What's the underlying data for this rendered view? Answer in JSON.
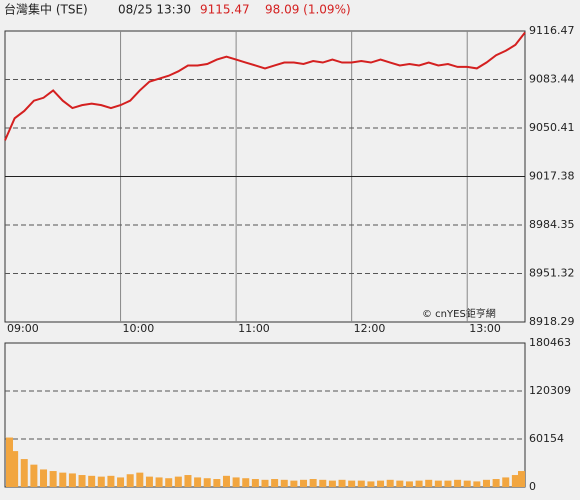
{
  "header": {
    "title": "台灣集中 (TSE)",
    "datetime": "08/25 13:30",
    "last": "9115.47",
    "change": "98.09 (1.09%)"
  },
  "watermark": "© cnYES鉅亨網",
  "chart_data": [
    {
      "type": "line",
      "color": "#d42020",
      "x": [
        "09:00",
        "09:05",
        "09:10",
        "09:15",
        "09:20",
        "09:25",
        "09:30",
        "09:35",
        "09:40",
        "09:45",
        "09:50",
        "09:55",
        "10:00",
        "10:05",
        "10:10",
        "10:15",
        "10:20",
        "10:25",
        "10:30",
        "10:35",
        "10:40",
        "10:45",
        "10:50",
        "10:55",
        "11:00",
        "11:05",
        "11:10",
        "11:15",
        "11:20",
        "11:25",
        "11:30",
        "11:35",
        "11:40",
        "11:45",
        "11:50",
        "11:55",
        "12:00",
        "12:05",
        "12:10",
        "12:15",
        "12:20",
        "12:25",
        "12:30",
        "12:35",
        "12:40",
        "12:45",
        "12:50",
        "12:55",
        "13:00",
        "13:05",
        "13:10",
        "13:15",
        "13:20",
        "13:25",
        "13:30"
      ],
      "values": [
        9042,
        9057,
        9062,
        9069,
        9071,
        9076,
        9069,
        9064,
        9066,
        9067,
        9066,
        9064,
        9066,
        9069,
        9076,
        9082,
        9084,
        9086,
        9089,
        9093,
        9093,
        9094,
        9097,
        9099,
        9097,
        9095,
        9093,
        9091,
        9093,
        9095,
        9095,
        9094,
        9096,
        9095,
        9097,
        9095,
        9095,
        9096,
        9095,
        9097,
        9095,
        9093,
        9094,
        9093,
        9095,
        9093,
        9094,
        9092,
        9092,
        9091,
        9095,
        9100,
        9103,
        9107,
        9115.47
      ],
      "xlim": [
        "09:00",
        "13:30"
      ],
      "xticks": [
        "09:00",
        "10:00",
        "11:00",
        "12:00",
        "13:00"
      ],
      "ylim": [
        8918.29,
        9116.47
      ],
      "yticks": [
        8918.29,
        8951.32,
        8984.35,
        9017.38,
        9050.41,
        9083.44,
        9116.47
      ],
      "reference_line": 9017.38,
      "grid": true
    },
    {
      "type": "bar",
      "color": "#f2a640",
      "x": [
        "09:00",
        "09:05",
        "09:10",
        "09:15",
        "09:20",
        "09:25",
        "09:30",
        "09:35",
        "09:40",
        "09:45",
        "09:50",
        "09:55",
        "10:00",
        "10:05",
        "10:10",
        "10:15",
        "10:20",
        "10:25",
        "10:30",
        "10:35",
        "10:40",
        "10:45",
        "10:50",
        "10:55",
        "11:00",
        "11:05",
        "11:10",
        "11:15",
        "11:20",
        "11:25",
        "11:30",
        "11:35",
        "11:40",
        "11:45",
        "11:50",
        "11:55",
        "12:00",
        "12:05",
        "12:10",
        "12:15",
        "12:20",
        "12:25",
        "12:30",
        "12:35",
        "12:40",
        "12:45",
        "12:50",
        "12:55",
        "13:00",
        "13:05",
        "13:10",
        "13:15",
        "13:20",
        "13:25",
        "13:30"
      ],
      "values": [
        62000,
        45000,
        35000,
        28000,
        22000,
        20000,
        18000,
        17000,
        15000,
        14000,
        13000,
        14000,
        12000,
        16000,
        18000,
        13000,
        12000,
        11000,
        13000,
        15000,
        12000,
        11000,
        10000,
        14000,
        12000,
        11000,
        10000,
        9000,
        10000,
        9000,
        8000,
        9000,
        10000,
        9000,
        8000,
        9000,
        8000,
        8000,
        7000,
        8000,
        9000,
        8000,
        7000,
        8000,
        9000,
        8000,
        8000,
        9000,
        8000,
        7000,
        9000,
        10000,
        12000,
        15000,
        20000
      ],
      "xlim": [
        "09:00",
        "13:30"
      ],
      "ylim": [
        0,
        180463
      ],
      "yticks": [
        0,
        60154,
        120309,
        180463
      ],
      "grid": true
    }
  ]
}
